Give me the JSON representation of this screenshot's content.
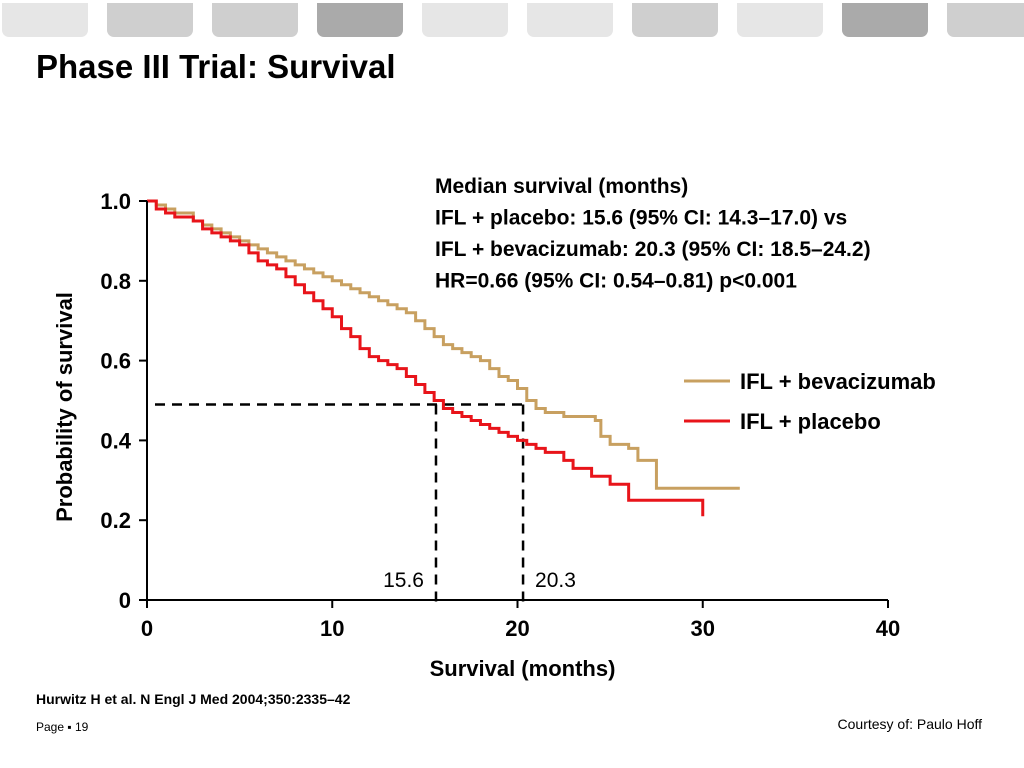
{
  "tabs": [
    {
      "shade": "light"
    },
    {
      "shade": "mid"
    },
    {
      "shade": "mid"
    },
    {
      "shade": "dark"
    },
    {
      "shade": "light"
    },
    {
      "shade": "light"
    },
    {
      "shade": "mid"
    },
    {
      "shade": "light"
    },
    {
      "shade": "dark"
    },
    {
      "shade": "mid"
    }
  ],
  "colors": {
    "tab_light": "#e6e6e6",
    "tab_mid": "#cfcfcf",
    "tab_dark": "#aaaaaa",
    "bevacizumab": "#c8a060",
    "placebo": "#e8141a"
  },
  "slide": {
    "title": "Phase III Trial: Survival",
    "citation": "Hurwitz H et al. N Engl J Med 2004;350:2335–42",
    "page_label": "Page ▪ 19",
    "courtesy": "Courtesy of: Paulo Hoff"
  },
  "chart_data": {
    "type": "line",
    "step": true,
    "xlabel": "Survival (months)",
    "ylabel": "Probability of survival",
    "xlim": [
      0,
      40
    ],
    "ylim": [
      0,
      1.0
    ],
    "xticks": [
      0,
      10,
      20,
      30,
      40
    ],
    "xtick_labels": [
      "0",
      "10",
      "20",
      "30",
      "40"
    ],
    "yticks": [
      0,
      0.2,
      0.4,
      0.6,
      0.8,
      1.0
    ],
    "ytick_labels": [
      "0",
      "0.2",
      "0.4",
      "0.6",
      "0.8",
      "1.0"
    ],
    "grid": false,
    "legend": "right",
    "annotation": [
      "Median survival (months)",
      "IFL + placebo: 15.6 (95% CI: 14.3–17.0) vs",
      "IFL + bevacizumab: 20.3 (95% CI: 18.5–24.2)",
      "HR=0.66 (95% CI: 0.54–0.81) p<0.001"
    ],
    "medians": {
      "y": 0.49,
      "x": [
        15.6,
        20.3
      ],
      "labels": [
        "15.6",
        "20.3"
      ]
    },
    "series": [
      {
        "name": "IFL + bevacizumab",
        "color": "#c8a060",
        "x": [
          0,
          0.5,
          1,
          1.5,
          2.5,
          3,
          3.5,
          4,
          4.5,
          5,
          5.5,
          6,
          6.5,
          7,
          7.5,
          8,
          8.5,
          9,
          9.5,
          10,
          10.5,
          11,
          11.5,
          12,
          12.5,
          13,
          13.5,
          14,
          14.5,
          15,
          15.5,
          16,
          16.5,
          17,
          17.5,
          18,
          18.5,
          19,
          19.5,
          20,
          20.5,
          21,
          21.5,
          22,
          22.5,
          23,
          24.2,
          24.5,
          25,
          26,
          26.5,
          27.5,
          32
        ],
        "y": [
          1.0,
          0.99,
          0.98,
          0.97,
          0.95,
          0.94,
          0.93,
          0.92,
          0.91,
          0.9,
          0.89,
          0.88,
          0.87,
          0.86,
          0.85,
          0.84,
          0.83,
          0.82,
          0.81,
          0.8,
          0.79,
          0.78,
          0.77,
          0.76,
          0.75,
          0.74,
          0.73,
          0.72,
          0.7,
          0.68,
          0.66,
          0.64,
          0.63,
          0.62,
          0.61,
          0.6,
          0.58,
          0.56,
          0.55,
          0.53,
          0.5,
          0.48,
          0.47,
          0.47,
          0.46,
          0.46,
          0.45,
          0.41,
          0.39,
          0.38,
          0.35,
          0.28,
          0.28
        ]
      },
      {
        "name": "IFL + placebo",
        "color": "#e8141a",
        "x": [
          0,
          0.5,
          1,
          1.5,
          2.5,
          3,
          3.5,
          4,
          4.5,
          5,
          5.5,
          6,
          6.5,
          7,
          7.5,
          8,
          8.5,
          9,
          9.5,
          10,
          10.5,
          11,
          11.5,
          12,
          12.5,
          13,
          13.5,
          14,
          14.5,
          15,
          15.5,
          16,
          16.5,
          17,
          17.5,
          18,
          18.5,
          19,
          19.5,
          20,
          20.5,
          21,
          21.5,
          22,
          22.5,
          23,
          24,
          25,
          26,
          30
        ],
        "y": [
          1.0,
          0.98,
          0.97,
          0.96,
          0.95,
          0.93,
          0.92,
          0.91,
          0.9,
          0.89,
          0.87,
          0.85,
          0.84,
          0.83,
          0.81,
          0.79,
          0.77,
          0.75,
          0.73,
          0.71,
          0.68,
          0.66,
          0.63,
          0.61,
          0.6,
          0.59,
          0.58,
          0.56,
          0.54,
          0.52,
          0.5,
          0.48,
          0.47,
          0.46,
          0.45,
          0.44,
          0.43,
          0.42,
          0.41,
          0.4,
          0.39,
          0.38,
          0.37,
          0.37,
          0.35,
          0.33,
          0.31,
          0.29,
          0.25,
          0.21
        ]
      }
    ]
  }
}
